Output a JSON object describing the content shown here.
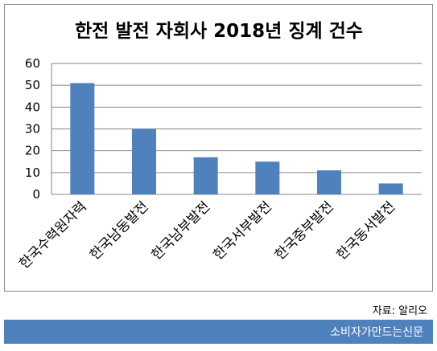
{
  "colors": {
    "bar": "#4f81bd",
    "footer": "#4f81bd",
    "axis": "#868686",
    "grid": "#868686"
  },
  "source_note": "자료: 알리오",
  "footer_text": "소비자가만드는신문",
  "chart_data": {
    "type": "bar",
    "title": "한전 발전 자회사 2018년 징계 건수",
    "categories": [
      "한국수력원자력",
      "한국남동발전",
      "한국남부발전",
      "한국서부발전",
      "한국중부발전",
      "한국동서발전"
    ],
    "values": [
      51,
      30,
      17,
      15,
      11,
      5
    ],
    "ylim": [
      0,
      60
    ],
    "yticks": [
      0,
      10,
      20,
      30,
      40,
      50,
      60
    ],
    "grid": true,
    "legend": "none"
  }
}
